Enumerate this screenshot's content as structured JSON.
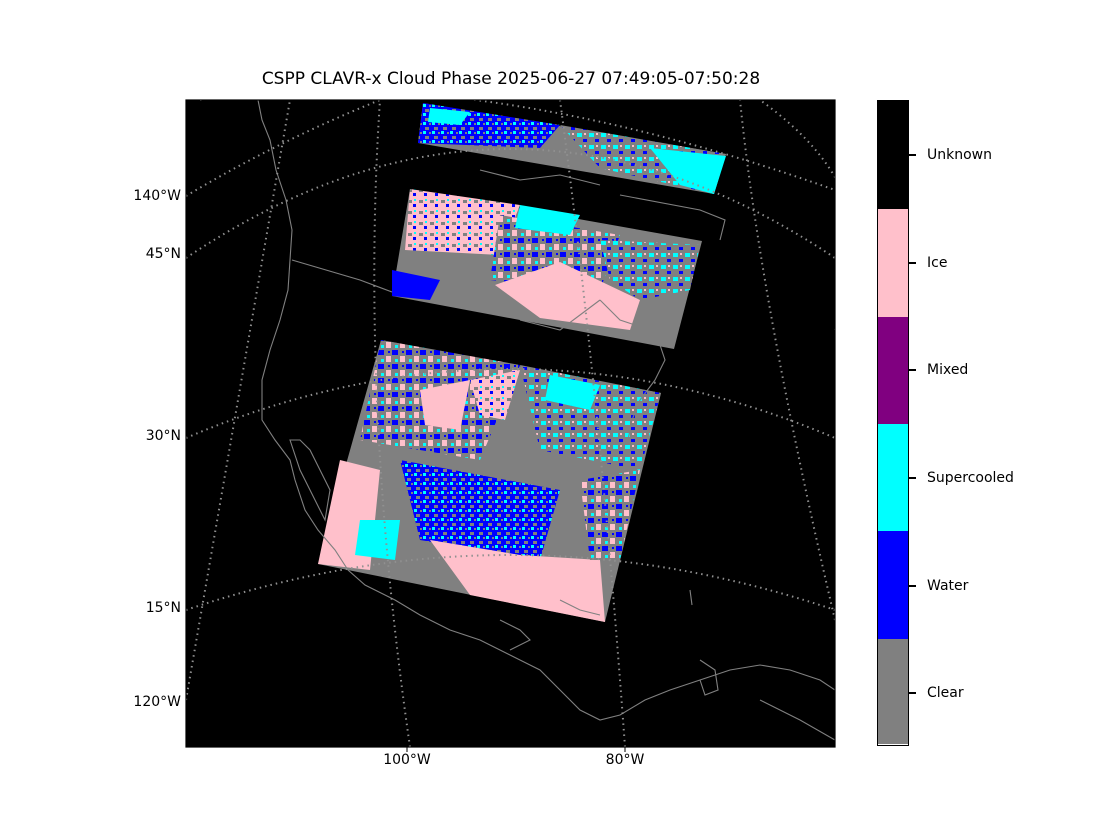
{
  "title": "CSPP CLAVR-x Cloud Phase 2025-06-27 07:49:05-07:50:28",
  "map": {
    "background_color": "#000000",
    "coastline_color": "#808080",
    "graticule_color": "#909090",
    "lon_ticks_bottom": [
      {
        "label": "100°W",
        "lon": -100
      },
      {
        "label": "80°W",
        "lon": -80
      }
    ],
    "left_labels": [
      {
        "label": "140°W",
        "kind": "longitude"
      },
      {
        "label": "45°N",
        "kind": "latitude"
      },
      {
        "label": "30°N",
        "kind": "latitude"
      },
      {
        "label": "15°N",
        "kind": "latitude"
      },
      {
        "label": "120°W",
        "kind": "longitude"
      }
    ],
    "granules": [
      {
        "name": "northern-swath-strip"
      },
      {
        "name": "middle-swath-strip"
      },
      {
        "name": "southern-swath-block"
      }
    ]
  },
  "colorbar": {
    "categories": [
      {
        "label": "Unknown",
        "color": "#000000"
      },
      {
        "label": "Ice",
        "color": "#ffc0cb"
      },
      {
        "label": "Mixed",
        "color": "#800080"
      },
      {
        "label": "Supercooled",
        "color": "#00ffff"
      },
      {
        "label": "Water",
        "color": "#0000ff"
      },
      {
        "label": "Clear",
        "color": "#808080"
      }
    ]
  }
}
